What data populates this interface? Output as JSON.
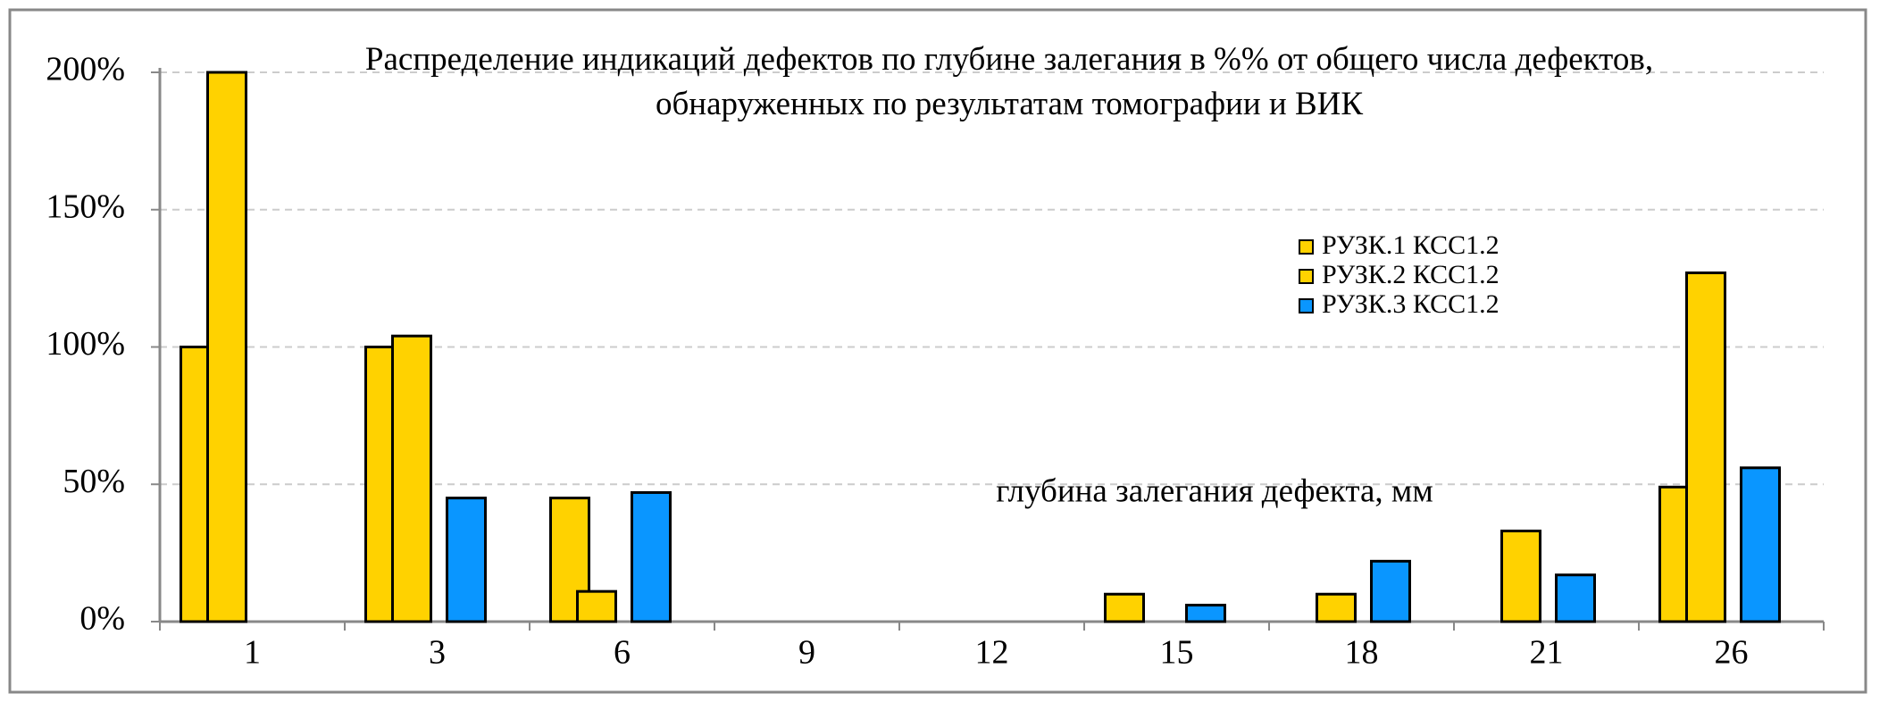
{
  "chart_data": {
    "type": "bar",
    "title": "Распределение индикаций дефектов по глубине залегания в %% от общего числа дефектов, обнаруженных по результатам томографии и ВИК",
    "x_label": "глубина залегания дефекта, мм",
    "categories": [
      "1",
      "3",
      "6",
      "9",
      "12",
      "15",
      "18",
      "21",
      "26"
    ],
    "series": [
      {
        "name": "РУЗК.1 КСС1.2",
        "color": "#ffd200",
        "values": [
          100,
          100,
          45,
          0,
          0,
          10,
          0,
          0,
          49
        ]
      },
      {
        "name": "РУЗК.2 КСС1.2",
        "color": "#ffd200",
        "values": [
          200,
          104,
          11,
          0,
          0,
          0,
          10,
          33,
          127
        ]
      },
      {
        "name": "РУЗК.3 КСС1.2",
        "color": "#0a96ff",
        "values": [
          0,
          45,
          47,
          0,
          0,
          6,
          22,
          17,
          56
        ]
      }
    ],
    "ylim": [
      0,
      200
    ],
    "yticks": [
      {
        "value": 0,
        "label": "0%"
      },
      {
        "value": 50,
        "label": "50%"
      },
      {
        "value": 100,
        "label": "100%"
      },
      {
        "value": 150,
        "label": "150%"
      },
      {
        "value": 200,
        "label": "200%"
      }
    ],
    "grid": true,
    "legend": "upper right"
  }
}
